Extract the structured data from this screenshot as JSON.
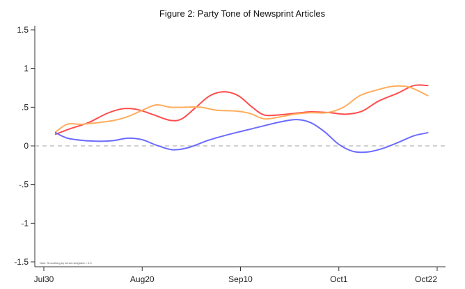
{
  "chart_data": {
    "type": "line",
    "title": "Figure 2: Party Tone of Newsprint Articles",
    "note": "Note: Smoothing by kernel-weighted = 0.3",
    "x_tick_labels": [
      "Jul30",
      "Aug20",
      "Sep10",
      "Oct1",
      "Oct22"
    ],
    "x_tick_days": [
      0,
      21,
      42,
      63,
      84
    ],
    "y_tick_labels": [
      "1.5",
      "1",
      ".5",
      "0",
      "-.5",
      "-1",
      "-1.5"
    ],
    "y_tick_values": [
      1.5,
      1,
      0.5,
      0,
      -0.5,
      -1,
      -1.5
    ],
    "ylim": [
      -1.5,
      1.5
    ],
    "xlim_days": [
      0,
      84
    ],
    "zero_line": true,
    "grid": false,
    "legend": "none",
    "series": [
      {
        "color": "#ff4d4d",
        "x": [
          2.5,
          5.5,
          9.5,
          13.5,
          16.8,
          20,
          23.5,
          27,
          29.5,
          32.5,
          35.5,
          38.5,
          41.5,
          44.5,
          47,
          50,
          53.5,
          57,
          61,
          64.5,
          68,
          71.5,
          75.5,
          79,
          82
        ],
        "y": [
          0.15,
          0.22,
          0.3,
          0.42,
          0.48,
          0.47,
          0.4,
          0.33,
          0.35,
          0.5,
          0.65,
          0.7,
          0.65,
          0.5,
          0.4,
          0.4,
          0.42,
          0.44,
          0.43,
          0.41,
          0.45,
          0.58,
          0.68,
          0.78,
          0.78
        ]
      },
      {
        "color": "#ffad5c",
        "x": [
          2.5,
          5,
          8,
          11.5,
          15,
          18,
          21,
          24,
          27,
          30,
          33.5,
          37,
          41,
          44,
          47,
          50,
          53.5,
          57,
          60.5,
          64,
          67.5,
          71,
          74.5,
          78,
          82
        ],
        "y": [
          0.18,
          0.28,
          0.28,
          0.3,
          0.33,
          0.38,
          0.46,
          0.53,
          0.5,
          0.5,
          0.5,
          0.46,
          0.45,
          0.42,
          0.35,
          0.37,
          0.41,
          0.43,
          0.43,
          0.5,
          0.65,
          0.72,
          0.77,
          0.76,
          0.65
        ]
      },
      {
        "color": "#6b6bff",
        "x": [
          2.5,
          5,
          8.5,
          12,
          15,
          18,
          21,
          24,
          27.5,
          31,
          35,
          39,
          43,
          47,
          50.5,
          54,
          57,
          60,
          63,
          66,
          69,
          72,
          75.5,
          79,
          82
        ],
        "y": [
          0.17,
          0.1,
          0.07,
          0.06,
          0.07,
          0.1,
          0.08,
          0.01,
          -0.05,
          -0.02,
          0.07,
          0.14,
          0.2,
          0.26,
          0.31,
          0.34,
          0.3,
          0.18,
          0.02,
          -0.07,
          -0.08,
          -0.04,
          0.04,
          0.13,
          0.17
        ]
      }
    ]
  }
}
